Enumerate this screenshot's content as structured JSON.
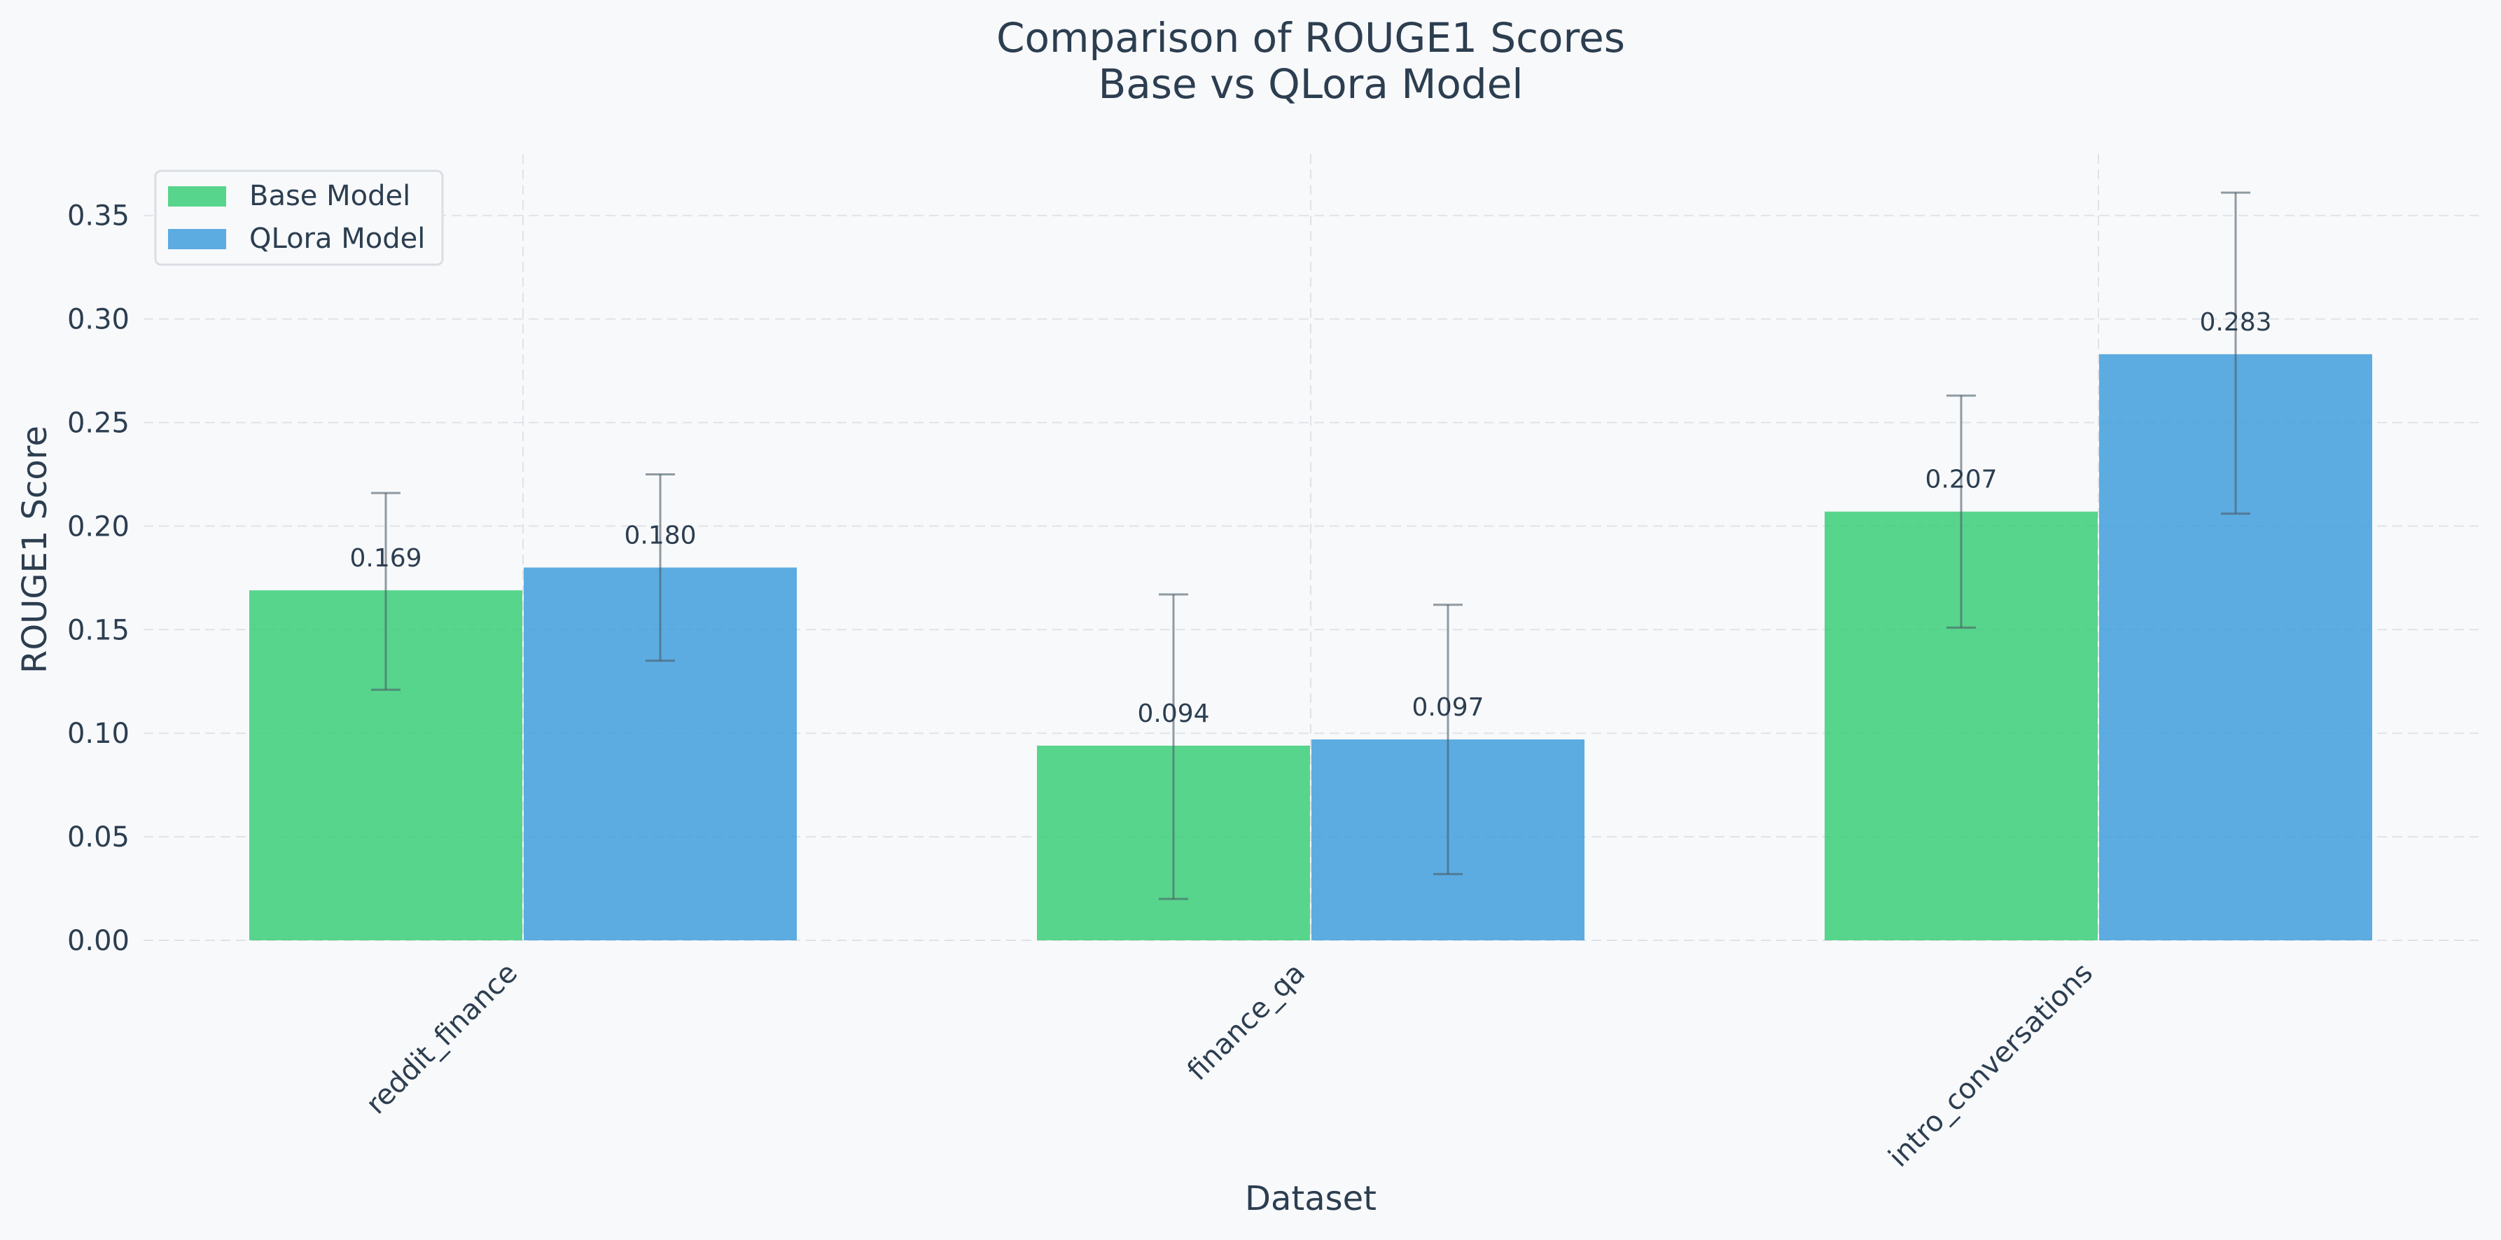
{
  "chart_data": {
    "type": "bar",
    "title": "Comparison of ROUGE1 Scores\nBase vs QLora Model",
    "title_lines": [
      "Comparison of ROUGE1 Scores",
      "Base vs QLora Model"
    ],
    "xlabel": "Dataset",
    "ylabel": "ROUGE1 Score",
    "categories": [
      "reddit_finance",
      "finance_qa",
      "intro_conversations"
    ],
    "series": [
      {
        "name": "Base Model",
        "color": "#2ecc71",
        "values": [
          0.169,
          0.094,
          0.207
        ],
        "value_labels": [
          "0.169",
          "0.094",
          "0.207"
        ],
        "error_low": [
          0.121,
          0.02,
          0.151
        ],
        "error_high": [
          0.216,
          0.167,
          0.263
        ]
      },
      {
        "name": "QLora Model",
        "color": "#3498db",
        "values": [
          0.18,
          0.097,
          0.283
        ],
        "value_labels": [
          "0.180",
          "0.097",
          "0.283"
        ],
        "error_low": [
          0.135,
          0.032,
          0.206
        ],
        "error_high": [
          0.225,
          0.162,
          0.361
        ]
      }
    ],
    "ylim": [
      0,
      0.38
    ],
    "yticks": [
      "0.00",
      "0.05",
      "0.10",
      "0.15",
      "0.20",
      "0.25",
      "0.30",
      "0.35"
    ],
    "grid": true,
    "legend": "top-left"
  }
}
